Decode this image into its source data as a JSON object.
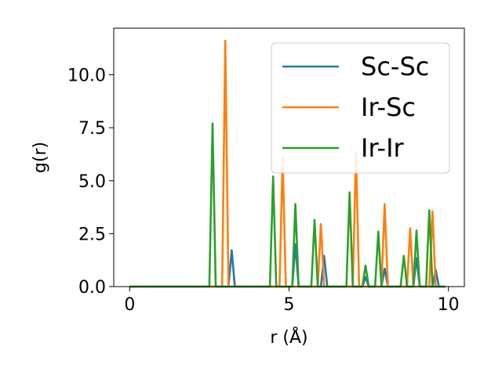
{
  "chart_data": {
    "type": "line",
    "title": "",
    "xlabel": "r (Å)",
    "ylabel": "g(r)",
    "xlim": [
      -0.5,
      10.5
    ],
    "ylim": [
      0,
      12.2
    ],
    "xticks": [
      0,
      5,
      10
    ],
    "xtick_labels": [
      "0",
      "5",
      "10"
    ],
    "yticks": [
      0.0,
      2.5,
      5.0,
      7.5,
      10.0
    ],
    "ytick_labels": [
      "0.0",
      "2.5",
      "5.0",
      "7.5",
      "10.0"
    ],
    "grid": false,
    "legend_position": "top-right",
    "series": [
      {
        "name": "Sc-Sc",
        "color": "#1f77b4",
        "x": [
          0,
          3.1,
          3.2,
          3.3,
          5.1,
          5.2,
          5.3,
          6.0,
          6.1,
          6.2,
          7.3,
          7.4,
          7.5,
          7.9,
          8.0,
          8.1,
          8.9,
          9.0,
          9.1,
          9.5,
          9.6,
          9.7,
          9.9
        ],
        "y": [
          0,
          0,
          1.72,
          0,
          0,
          2.0,
          0,
          0,
          1.45,
          0,
          0,
          0.45,
          0,
          0,
          0.85,
          0,
          0,
          1.35,
          0,
          0,
          0.8,
          0,
          0
        ]
      },
      {
        "name": "Ir-Sc",
        "color": "#ff7f0e",
        "x": [
          0,
          2.9,
          3.0,
          3.1,
          4.7,
          4.8,
          4.9,
          5.9,
          6.0,
          6.1,
          7.0,
          7.1,
          7.2,
          7.9,
          8.0,
          8.1,
          8.7,
          8.8,
          8.9,
          9.4,
          9.5,
          9.6,
          9.9
        ],
        "y": [
          0,
          0,
          11.6,
          0,
          0,
          6.1,
          0,
          0,
          2.95,
          0,
          0,
          6.35,
          0,
          0,
          3.9,
          0,
          0,
          2.75,
          0,
          0,
          3.55,
          0,
          0
        ]
      },
      {
        "name": "Ir-Ir",
        "color": "#2ca02c",
        "x": [
          0,
          2.5,
          2.6,
          2.7,
          4.4,
          4.5,
          4.6,
          5.1,
          5.2,
          5.3,
          5.7,
          5.8,
          5.9,
          6.8,
          6.9,
          7.0,
          7.3,
          7.4,
          7.5,
          7.7,
          7.8,
          7.9,
          8.5,
          8.6,
          8.7,
          8.9,
          9.0,
          9.1,
          9.3,
          9.4,
          9.5,
          9.9
        ],
        "y": [
          0,
          0,
          7.7,
          0,
          0,
          5.2,
          0,
          0,
          3.9,
          0,
          0,
          3.15,
          0,
          0,
          4.45,
          0,
          0,
          1.0,
          0,
          0,
          2.6,
          0,
          0,
          1.45,
          0,
          0,
          2.65,
          0,
          0,
          3.6,
          0,
          0
        ]
      }
    ]
  }
}
